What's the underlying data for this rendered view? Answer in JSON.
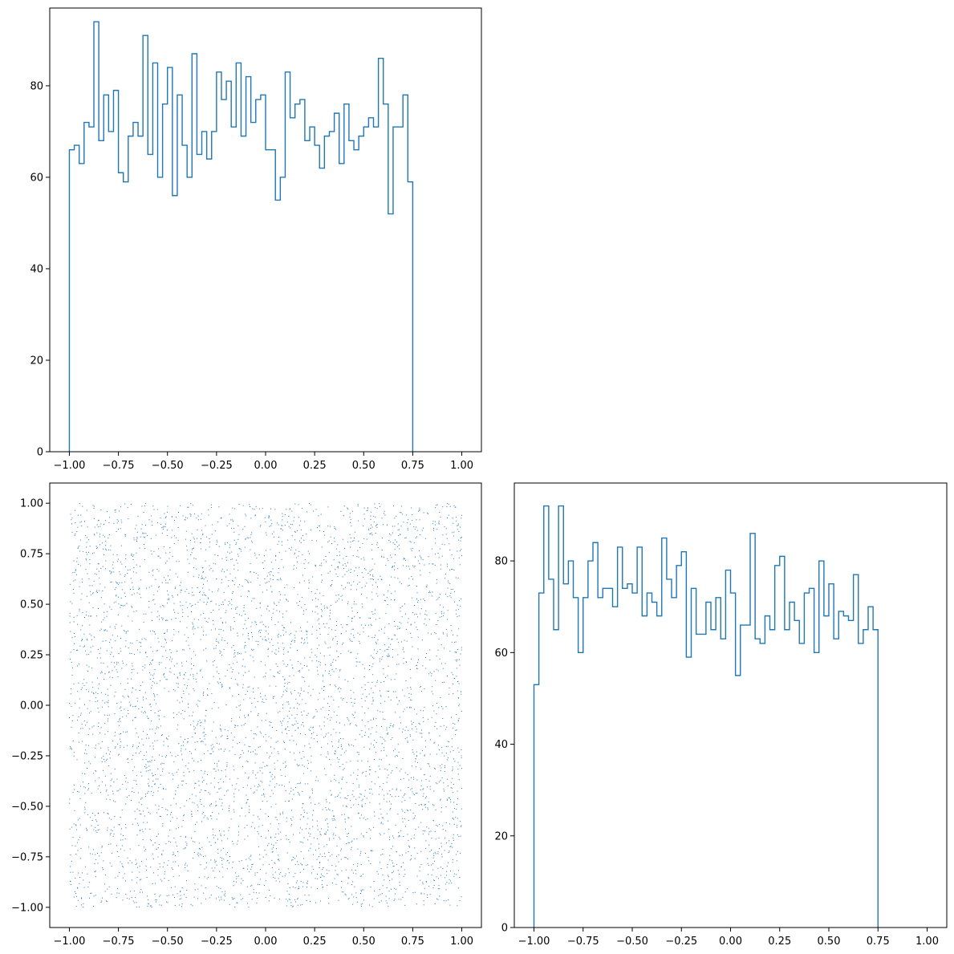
{
  "chart_data": [
    {
      "id": "x-hist",
      "type": "histogram",
      "histtype": "step",
      "bin_start": -1.0,
      "bin_width": 0.025,
      "counts": [
        66,
        67,
        63,
        72,
        71,
        94,
        68,
        78,
        70,
        79,
        61,
        59,
        69,
        72,
        69,
        91,
        65,
        85,
        60,
        76,
        84,
        56,
        78,
        67,
        60,
        87,
        65,
        70,
        64,
        70,
        83,
        77,
        81,
        71,
        85,
        69,
        82,
        72,
        77,
        78,
        66,
        66,
        55,
        60,
        83,
        73,
        76,
        77,
        68,
        71,
        67,
        62,
        69,
        70,
        74,
        63,
        76,
        68,
        66,
        69,
        71,
        73,
        71,
        86,
        76,
        52,
        71,
        71,
        78,
        59
      ],
      "xlim": [
        -1.1,
        1.1
      ],
      "ylim": [
        0,
        97
      ],
      "xticks": [
        -1.0,
        -0.75,
        -0.5,
        -0.25,
        0.0,
        0.25,
        0.5,
        0.75,
        1.0
      ],
      "xtick_labels": [
        "−1.00",
        "−0.75",
        "−0.50",
        "−0.25",
        "0.00",
        "0.25",
        "0.50",
        "0.75",
        "1.00"
      ],
      "yticks": [
        0,
        20,
        40,
        60,
        80
      ],
      "ytick_labels": [
        "0",
        "20",
        "40",
        "60",
        "80"
      ],
      "color": "#1f77b4"
    },
    {
      "id": "scatter",
      "type": "scatter",
      "n_points": 5000,
      "x_range": [
        -1.0,
        1.0
      ],
      "y_range": [
        -1.0,
        1.0
      ],
      "xlim": [
        -1.1,
        1.1
      ],
      "ylim": [
        -1.1,
        1.1
      ],
      "xticks": [
        -1.0,
        -0.75,
        -0.5,
        -0.25,
        0.0,
        0.25,
        0.5,
        0.75,
        1.0
      ],
      "xtick_labels": [
        "−1.00",
        "−0.75",
        "−0.50",
        "−0.25",
        "0.00",
        "0.25",
        "0.50",
        "0.75",
        "1.00"
      ],
      "yticks": [
        -1.0,
        -0.75,
        -0.5,
        -0.25,
        0.0,
        0.25,
        0.5,
        0.75,
        1.0
      ],
      "ytick_labels": [
        "−1.00",
        "−0.75",
        "−0.50",
        "−0.25",
        "0.00",
        "0.25",
        "0.50",
        "0.75",
        "1.00"
      ],
      "color": "#1f77b4"
    },
    {
      "id": "y-hist",
      "type": "histogram",
      "histtype": "step",
      "bin_start": -1.0,
      "bin_width": 0.025,
      "counts": [
        53,
        73,
        92,
        76,
        65,
        92,
        75,
        80,
        72,
        60,
        72,
        80,
        84,
        72,
        74,
        74,
        70,
        83,
        74,
        75,
        73,
        83,
        68,
        73,
        71,
        68,
        85,
        76,
        72,
        79,
        82,
        59,
        74,
        64,
        64,
        71,
        65,
        72,
        63,
        78,
        73,
        55,
        66,
        66,
        86,
        63,
        62,
        68,
        65,
        79,
        81,
        65,
        71,
        67,
        62,
        73,
        74,
        60,
        80,
        68,
        75,
        63,
        69,
        68,
        67,
        77,
        62,
        65,
        70,
        65
      ],
      "xlim": [
        -1.1,
        1.1
      ],
      "ylim": [
        0,
        97
      ],
      "xticks": [
        -1.0,
        -0.75,
        -0.5,
        -0.25,
        0.0,
        0.25,
        0.5,
        0.75,
        1.0
      ],
      "xtick_labels": [
        "−1.00",
        "−0.75",
        "−0.50",
        "−0.25",
        "0.00",
        "0.25",
        "0.50",
        "0.75",
        "1.00"
      ],
      "yticks": [
        0,
        20,
        40,
        60,
        80
      ],
      "ytick_labels": [
        "0",
        "20",
        "40",
        "60",
        "80"
      ],
      "color": "#1f77b4"
    }
  ]
}
